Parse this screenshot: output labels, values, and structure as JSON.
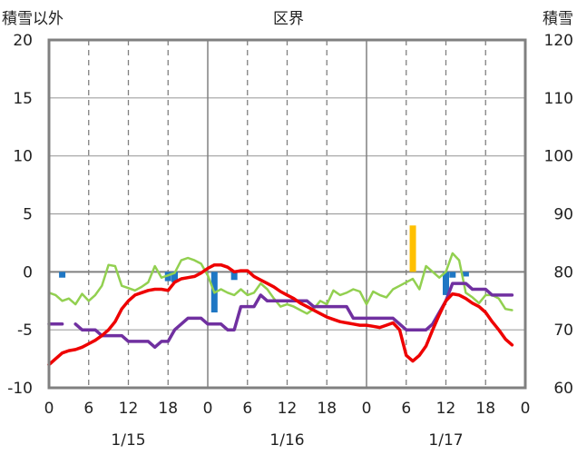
{
  "chart_data": {
    "type": "line",
    "title": "区界",
    "left_axis_title": "積雪以外",
    "right_axis_title": "積雪",
    "left_ylim": [
      -10,
      20
    ],
    "left_yticks": [
      "-10",
      "-5",
      "0",
      "5",
      "10",
      "15",
      "20"
    ],
    "right_ylim": [
      60,
      120
    ],
    "right_yticks": [
      "60",
      "70",
      "80",
      "90",
      "100",
      "110",
      "120"
    ],
    "x_range_hours": [
      0,
      72
    ],
    "x_ticks": [
      {
        "h": 0,
        "label": "0"
      },
      {
        "h": 6,
        "label": "6"
      },
      {
        "h": 12,
        "label": "12"
      },
      {
        "h": 18,
        "label": "18"
      },
      {
        "h": 24,
        "label": "0"
      },
      {
        "h": 30,
        "label": "6"
      },
      {
        "h": 36,
        "label": "12"
      },
      {
        "h": 42,
        "label": "18"
      },
      {
        "h": 48,
        "label": "0"
      },
      {
        "h": 54,
        "label": "6"
      },
      {
        "h": 60,
        "label": "12"
      },
      {
        "h": 66,
        "label": "18"
      },
      {
        "h": 72,
        "label": "0"
      }
    ],
    "date_labels": [
      {
        "h": 12,
        "label": "1/15"
      },
      {
        "h": 36,
        "label": "1/16"
      },
      {
        "h": 60,
        "label": "1/17"
      }
    ],
    "grid": {
      "dashed_every_hours": 6,
      "solid_every_hours": 24
    },
    "colors": {
      "temperature": "#ee0000",
      "snow_depth": "#7030a0",
      "humidity_like": "#92d050",
      "precip_blue": "#1f77c4",
      "precip_yellow": "#ffc000",
      "frame": "#808080"
    },
    "series": [
      {
        "key": "temperature",
        "axis": "left",
        "points": [
          [
            0,
            -8.0
          ],
          [
            1,
            -7.5
          ],
          [
            2,
            -7.0
          ],
          [
            3,
            -6.8
          ],
          [
            4,
            -6.7
          ],
          [
            5,
            -6.5
          ],
          [
            6,
            -6.2
          ],
          [
            7,
            -5.9
          ],
          [
            8,
            -5.5
          ],
          [
            9,
            -5.0
          ],
          [
            10,
            -4.3
          ],
          [
            11,
            -3.2
          ],
          [
            12,
            -2.5
          ],
          [
            13,
            -2.0
          ],
          [
            14,
            -1.8
          ],
          [
            15,
            -1.6
          ],
          [
            16,
            -1.5
          ],
          [
            17,
            -1.5
          ],
          [
            18,
            -1.6
          ],
          [
            19,
            -0.9
          ],
          [
            20,
            -0.6
          ],
          [
            21,
            -0.5
          ],
          [
            22,
            -0.4
          ],
          [
            23,
            -0.1
          ],
          [
            24,
            0.3
          ],
          [
            25,
            0.6
          ],
          [
            26,
            0.6
          ],
          [
            27,
            0.4
          ],
          [
            28,
            0.0
          ],
          [
            29,
            0.1
          ],
          [
            30,
            0.1
          ],
          [
            31,
            -0.4
          ],
          [
            32,
            -0.7
          ],
          [
            33,
            -1.0
          ],
          [
            34,
            -1.3
          ],
          [
            35,
            -1.7
          ],
          [
            36,
            -2.0
          ],
          [
            37,
            -2.3
          ],
          [
            38,
            -2.7
          ],
          [
            39,
            -3.0
          ],
          [
            40,
            -3.3
          ],
          [
            41,
            -3.6
          ],
          [
            42,
            -3.9
          ],
          [
            43,
            -4.1
          ],
          [
            44,
            -4.3
          ],
          [
            45,
            -4.4
          ],
          [
            46,
            -4.5
          ],
          [
            47,
            -4.6
          ],
          [
            48,
            -4.6
          ],
          [
            49,
            -4.7
          ],
          [
            50,
            -4.8
          ],
          [
            51,
            -4.6
          ],
          [
            52,
            -4.4
          ],
          [
            53,
            -5.0
          ],
          [
            54,
            -7.2
          ],
          [
            55,
            -7.7
          ],
          [
            56,
            -7.2
          ],
          [
            57,
            -6.4
          ],
          [
            58,
            -5.0
          ],
          [
            59,
            -3.7
          ],
          [
            60,
            -2.5
          ],
          [
            61,
            -1.9
          ],
          [
            62,
            -2.0
          ],
          [
            63,
            -2.3
          ],
          [
            64,
            -2.7
          ],
          [
            65,
            -3.0
          ],
          [
            66,
            -3.5
          ],
          [
            67,
            -4.3
          ],
          [
            68,
            -5.0
          ],
          [
            69,
            -5.8
          ],
          [
            70,
            -6.3
          ]
        ]
      },
      {
        "key": "humidity_like",
        "axis": "left",
        "points": [
          [
            0,
            -1.8
          ],
          [
            1,
            -2.0
          ],
          [
            2,
            -2.5
          ],
          [
            3,
            -2.3
          ],
          [
            4,
            -2.8
          ],
          [
            5,
            -1.9
          ],
          [
            6,
            -2.5
          ],
          [
            7,
            -2.0
          ],
          [
            8,
            -1.2
          ],
          [
            9,
            0.6
          ],
          [
            10,
            0.5
          ],
          [
            11,
            -1.2
          ],
          [
            12,
            -1.4
          ],
          [
            13,
            -1.6
          ],
          [
            14,
            -1.3
          ],
          [
            15,
            -0.9
          ],
          [
            16,
            0.5
          ],
          [
            17,
            -0.5
          ],
          [
            18,
            -0.3
          ],
          [
            19,
            -0.1
          ],
          [
            20,
            1.0
          ],
          [
            21,
            1.2
          ],
          [
            22,
            1.0
          ],
          [
            23,
            0.7
          ],
          [
            24,
            -0.3
          ],
          [
            25,
            -1.8
          ],
          [
            26,
            -1.5
          ],
          [
            27,
            -1.8
          ],
          [
            28,
            -2.0
          ],
          [
            29,
            -1.5
          ],
          [
            30,
            -2.0
          ],
          [
            31,
            -1.8
          ],
          [
            32,
            -1.0
          ],
          [
            33,
            -1.5
          ],
          [
            34,
            -2.3
          ],
          [
            35,
            -3.0
          ],
          [
            36,
            -2.8
          ],
          [
            37,
            -3.0
          ],
          [
            38,
            -3.3
          ],
          [
            39,
            -3.6
          ],
          [
            40,
            -3.2
          ],
          [
            41,
            -2.5
          ],
          [
            42,
            -2.8
          ],
          [
            43,
            -1.6
          ],
          [
            44,
            -2.0
          ],
          [
            45,
            -1.8
          ],
          [
            46,
            -1.5
          ],
          [
            47,
            -1.7
          ],
          [
            48,
            -2.8
          ],
          [
            49,
            -1.7
          ],
          [
            50,
            -2.0
          ],
          [
            51,
            -2.2
          ],
          [
            52,
            -1.5
          ],
          [
            53,
            -1.2
          ],
          [
            54,
            -0.9
          ],
          [
            55,
            -0.6
          ],
          [
            56,
            -1.5
          ],
          [
            57,
            0.5
          ],
          [
            58,
            0.0
          ],
          [
            59,
            -0.5
          ],
          [
            60,
            0.0
          ],
          [
            61,
            1.6
          ],
          [
            62,
            1.0
          ],
          [
            63,
            -1.8
          ],
          [
            64,
            -2.2
          ],
          [
            65,
            -2.7
          ],
          [
            66,
            -2.0
          ],
          [
            67,
            -2.0
          ],
          [
            68,
            -2.3
          ],
          [
            69,
            -3.2
          ],
          [
            70,
            -3.3
          ]
        ]
      },
      {
        "key": "snow_depth",
        "axis": "right",
        "segments": [
          [
            [
              0,
              71
            ],
            [
              2,
              71
            ]
          ],
          [
            [
              4,
              71
            ],
            [
              5,
              70
            ],
            [
              7,
              70
            ],
            [
              8,
              69
            ],
            [
              11,
              69
            ],
            [
              12,
              68
            ],
            [
              15,
              68
            ],
            [
              16,
              67
            ],
            [
              17,
              68
            ],
            [
              18,
              68
            ],
            [
              19,
              70
            ],
            [
              20,
              71
            ],
            [
              21,
              72
            ],
            [
              23,
              72
            ],
            [
              24,
              71
            ],
            [
              26,
              71
            ],
            [
              27,
              70
            ],
            [
              28,
              70
            ],
            [
              29,
              74
            ],
            [
              31,
              74
            ],
            [
              32,
              76
            ],
            [
              33,
              75
            ],
            [
              39,
              75
            ],
            [
              40,
              74
            ],
            [
              45,
              74
            ],
            [
              46,
              72
            ],
            [
              52,
              72
            ],
            [
              53,
              71
            ],
            [
              54,
              70
            ],
            [
              57,
              70
            ],
            [
              58,
              71
            ],
            [
              60,
              75
            ],
            [
              61,
              78
            ],
            [
              63,
              78
            ],
            [
              64,
              77
            ],
            [
              66,
              77
            ],
            [
              67,
              76
            ],
            [
              70,
              76
            ]
          ]
        ]
      }
    ],
    "bars": [
      {
        "key": "precip_blue",
        "axis": "left",
        "points": [
          [
            2,
            -0.5
          ],
          [
            18,
            -0.8
          ],
          [
            19,
            -0.9
          ],
          [
            25,
            -3.5
          ],
          [
            28,
            -0.7
          ],
          [
            60,
            -2.0
          ],
          [
            61,
            -0.5
          ],
          [
            63,
            -0.4
          ]
        ]
      },
      {
        "key": "precip_yellow",
        "axis": "left",
        "points": [
          [
            55,
            4.0
          ]
        ]
      }
    ]
  }
}
